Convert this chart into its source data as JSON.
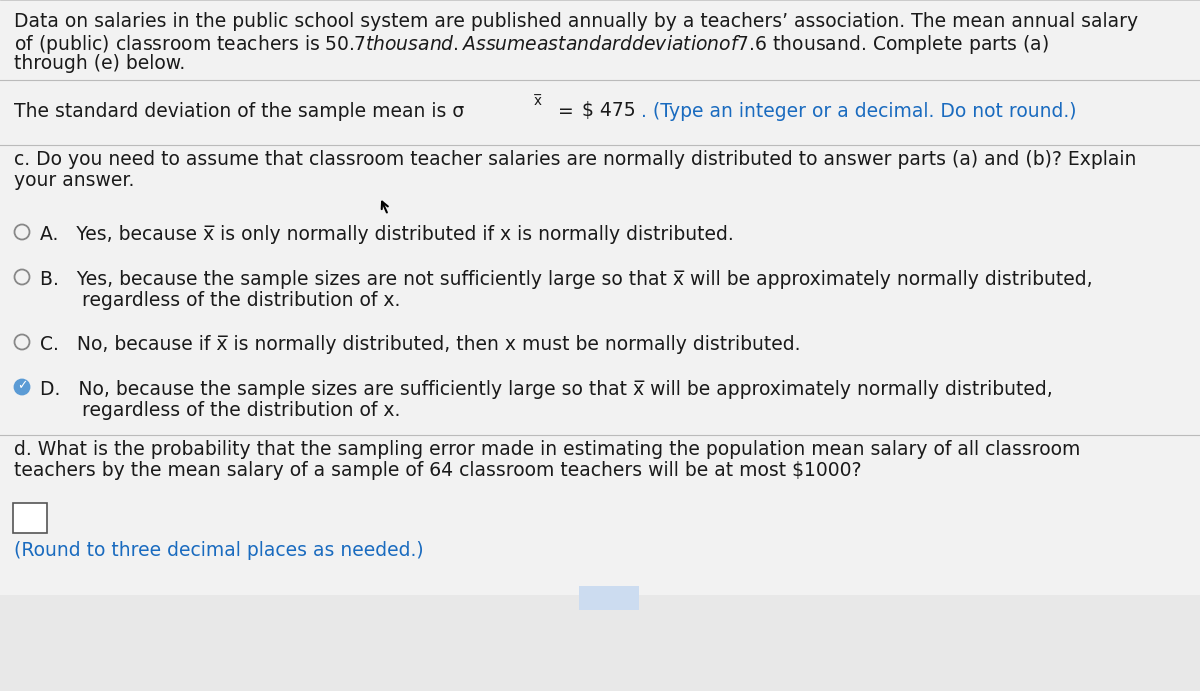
{
  "bg_color": "#e8e8e8",
  "panel_color": "#f0f0f0",
  "text_color": "#1a1a1a",
  "blue_color": "#1a6bbf",
  "green_color": "#5a9a3a",
  "radio_edge_color": "#888888",
  "line_color": "#bbbbbb",
  "highlight_bg": "#ccdcf0",
  "header_text_line1": "Data on salaries in the public school system are published annually by a teachers’ association. The mean annual salary",
  "header_text_line2": "of (public) classroom teachers is $50.7 thousand. Assume a standard deviation of $7.6 thousand. Complete parts (a)",
  "header_text_line3": "through (e) below.",
  "std_text": "The standard deviation of the sample mean is σ",
  "std_subscript": "x̅",
  "std_value": "$ 475",
  "std_suffix": ". (Type an integer or a decimal. Do not round.)",
  "part_c_line1": "c. Do you need to assume that classroom teacher salaries are normally distributed to answer parts (a) and (b)? Explain",
  "part_c_line2": "your answer.",
  "opt_A": "A.   Yes, because x̅ is only normally distributed if x is normally distributed.",
  "opt_B1": "B.   Yes, because the sample sizes are not sufficiently large so that x̅ will be approximately normally distributed,",
  "opt_B2": "       regardless of the distribution of x.",
  "opt_C": "C.   No, because if x̅ is normally distributed, then x must be normally distributed.",
  "opt_D1": "D.   No, because the sample sizes are sufficiently large so that x̅ will be approximately normally distributed,",
  "opt_D2": "       regardless of the distribution of x.",
  "part_d_line1": "d. What is the probability that the sampling error made in estimating the population mean salary of all classroom",
  "part_d_line2": "teachers by the mean salary of a sample of 64 classroom teachers will be at most $1000?",
  "footer": "(Round to three decimal places as needed.)",
  "font_size": 13.5,
  "small_font": 11.0
}
